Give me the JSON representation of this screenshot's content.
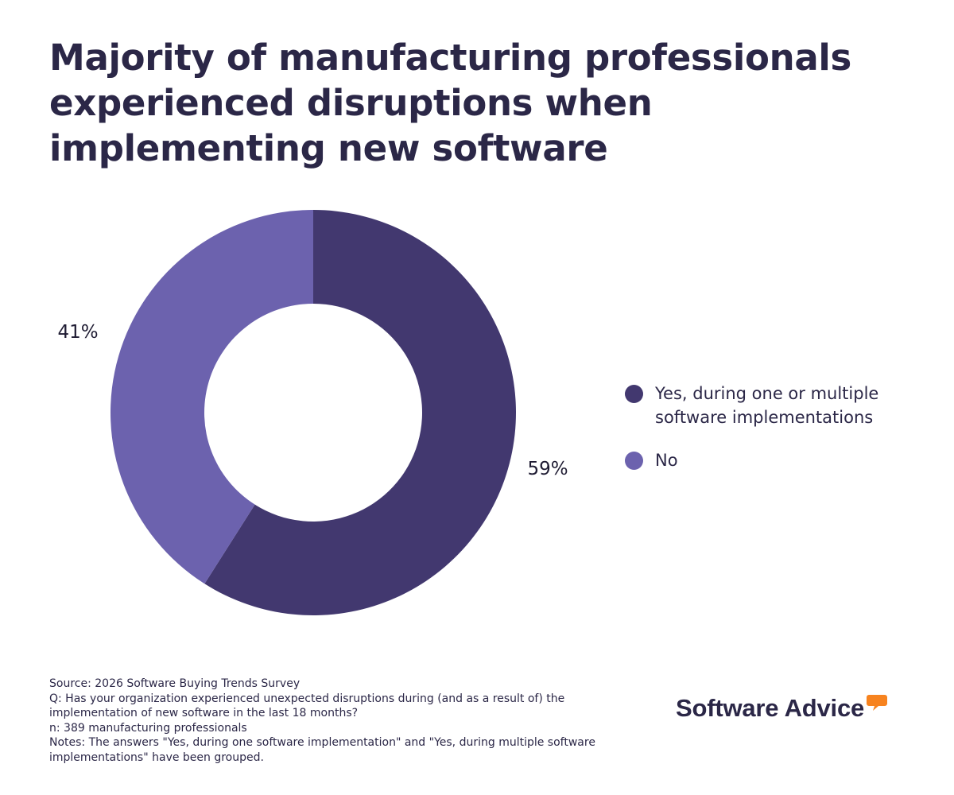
{
  "title": "Majority of manufacturing professionals experienced disruptions when implementing new software",
  "chart_data": {
    "type": "pie",
    "variant": "donut",
    "categories": [
      "Yes, during one or multiple software implementations",
      "No"
    ],
    "values": [
      59,
      41
    ],
    "value_labels": [
      "59%",
      "41%"
    ],
    "colors": [
      "#42386f",
      "#6c62ae"
    ],
    "legend_position": "right"
  },
  "footnotes": {
    "source": "Source: 2026 Software Buying Trends Survey",
    "question": "Q: Has your organization experienced unexpected disruptions during (and as a result of) the implementation of new software in the last 18 months?",
    "n": "n: 389 manufacturing professionals",
    "notes": "Notes: The answers \"Yes, during one software implementation\" and \"Yes, during multiple software implementations\" have been grouped."
  },
  "logo": {
    "text": "Software Advice",
    "accent_color": "#f7831f"
  }
}
